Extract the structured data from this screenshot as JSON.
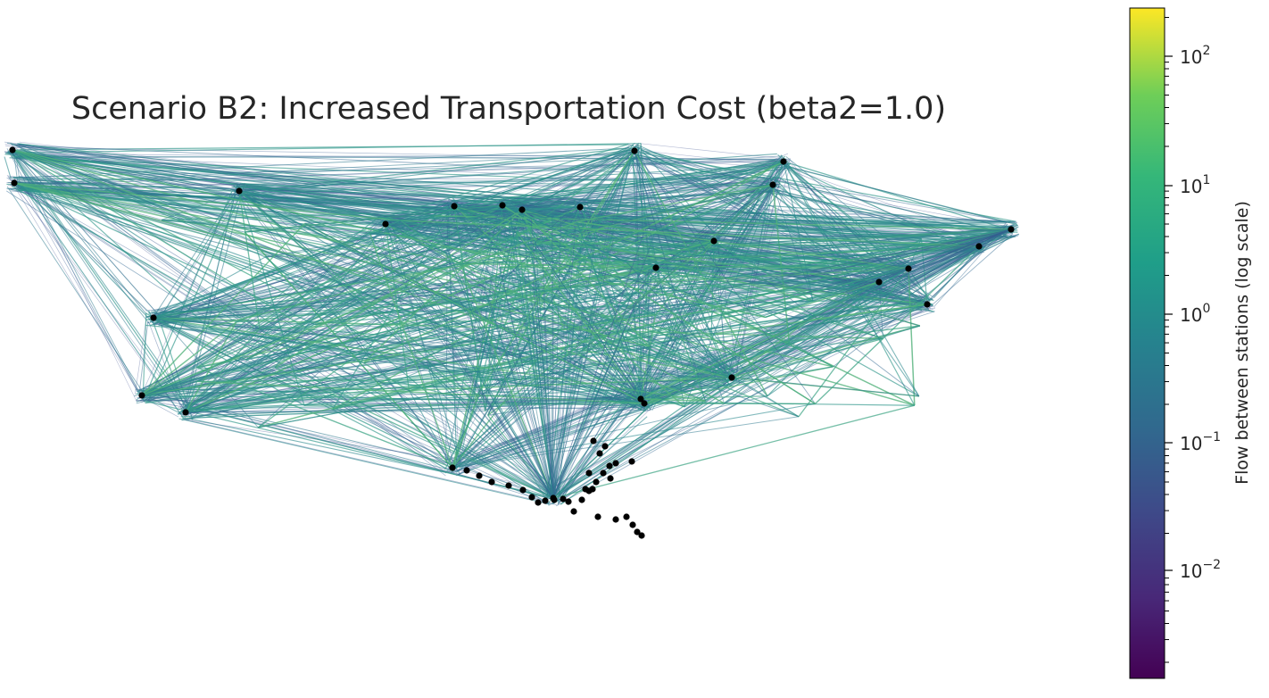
{
  "title": "Scenario B2: Increased Transportation Cost (beta2=1.0)",
  "colorbar": {
    "label": "Flow between stations (log scale)",
    "scale": "log",
    "colormap": "viridis",
    "range": [
      0.0013,
      250
    ],
    "ticks": [
      {
        "base": "10",
        "exp": "2"
      },
      {
        "base": "10",
        "exp": "1"
      },
      {
        "base": "10",
        "exp": "0"
      },
      {
        "base": "10",
        "exp": "−1"
      },
      {
        "base": "10",
        "exp": "−2"
      }
    ]
  },
  "colors": {
    "node": "#000000",
    "edge_low": "#3b4f8f",
    "edge_mid": "#2f7f8e",
    "edge_high": "#4cb97a"
  }
}
